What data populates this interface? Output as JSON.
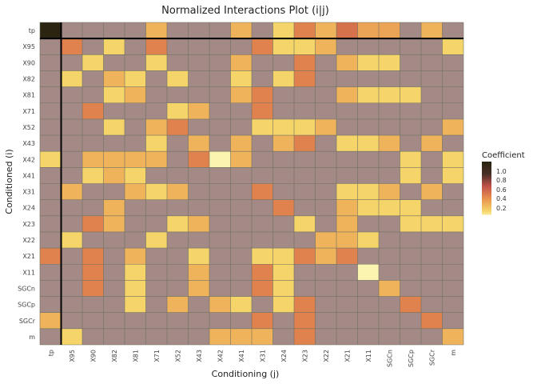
{
  "chart_data": {
    "type": "heatmap",
    "title": "Normalized Interactions Plot (i|j)",
    "xlabel": "Conditioning (j)",
    "ylabel": "Conditioned (i)",
    "x_categories": [
      "tp",
      "X95",
      "X90",
      "X82",
      "X81",
      "X71",
      "X52",
      "X43",
      "X42",
      "X41",
      "X31",
      "X24",
      "X23",
      "X22",
      "X21",
      "X11",
      "SGCn",
      "SGCp",
      "SGCr",
      "m"
    ],
    "y_categories": [
      "tp",
      "X95",
      "X90",
      "X82",
      "X81",
      "X71",
      "X52",
      "X43",
      "X42",
      "X41",
      "X31",
      "X24",
      "X23",
      "X22",
      "X21",
      "X11",
      "SGCn",
      "SGCp",
      "SGCr",
      "m"
    ],
    "values": [
      [
        1.0,
        0,
        0,
        0,
        0,
        0.3,
        0,
        0,
        0,
        0.3,
        0,
        0.2,
        0.45,
        0.3,
        0.5,
        0.35,
        0.35,
        0,
        0.3,
        0
      ],
      [
        0,
        0.45,
        0,
        0.2,
        0,
        0.45,
        0,
        0,
        0,
        0,
        0.45,
        0.2,
        0.2,
        0.3,
        0,
        0,
        0,
        0,
        0,
        0.2
      ],
      [
        0,
        0,
        0.2,
        0,
        0,
        0.2,
        0,
        0,
        0,
        0.3,
        0,
        0,
        0.45,
        0,
        0.3,
        0.2,
        0.2,
        0,
        0,
        0
      ],
      [
        0,
        0.2,
        0,
        0.3,
        0.2,
        0,
        0.2,
        0,
        0,
        0.2,
        0,
        0.2,
        0.45,
        0,
        0,
        0,
        0,
        0,
        0,
        0
      ],
      [
        0,
        0,
        0,
        0.2,
        0.3,
        0,
        0,
        0,
        0,
        0.3,
        0.45,
        0,
        0,
        0,
        0.3,
        0.2,
        0.2,
        0.2,
        0,
        0
      ],
      [
        0,
        0,
        0.45,
        0,
        0,
        0,
        0.2,
        0.3,
        0,
        0,
        0.45,
        0,
        0,
        0,
        0,
        0,
        0,
        0,
        0,
        0
      ],
      [
        0,
        0,
        0,
        0.2,
        0,
        0.3,
        0.45,
        0,
        0,
        0,
        0.2,
        0.2,
        0.2,
        0.3,
        0,
        0,
        0,
        0,
        0,
        0.3
      ],
      [
        0,
        0,
        0,
        0,
        0,
        0.2,
        0,
        0.3,
        0,
        0.3,
        0,
        0.3,
        0.45,
        0,
        0.2,
        0.2,
        0.3,
        0,
        0.3,
        0
      ],
      [
        0.2,
        0,
        0.3,
        0.3,
        0.3,
        0.3,
        0,
        0.45,
        0.1,
        0.3,
        0,
        0,
        0,
        0,
        0,
        0,
        0,
        0.2,
        0,
        0.2
      ],
      [
        0,
        0,
        0.2,
        0.3,
        0.2,
        0,
        0,
        0,
        0,
        0,
        0,
        0,
        0,
        0,
        0,
        0,
        0,
        0.2,
        0,
        0.2
      ],
      [
        0,
        0.3,
        0,
        0,
        0.3,
        0.2,
        0.3,
        0,
        0,
        0,
        0.45,
        0,
        0,
        0,
        0.2,
        0.2,
        0.3,
        0,
        0.3,
        0
      ],
      [
        0,
        0,
        0,
        0.3,
        0,
        0,
        0,
        0,
        0,
        0,
        0,
        0.45,
        0,
        0,
        0.3,
        0.2,
        0.2,
        0.2,
        0,
        0
      ],
      [
        0,
        0,
        0.45,
        0.3,
        0,
        0,
        0.2,
        0.3,
        0,
        0,
        0,
        0,
        0.2,
        0,
        0.3,
        0,
        0,
        0.2,
        0.2,
        0.2
      ],
      [
        0,
        0.2,
        0,
        0,
        0,
        0.2,
        0,
        0,
        0,
        0,
        0,
        0,
        0,
        0.3,
        0.3,
        0.2,
        0,
        0,
        0,
        0
      ],
      [
        0.45,
        0,
        0.45,
        0,
        0.3,
        0,
        0,
        0.2,
        0,
        0,
        0.2,
        0.2,
        0.45,
        0.3,
        0.45,
        0,
        0,
        0,
        0,
        0
      ],
      [
        0,
        0,
        0.45,
        0,
        0.2,
        0,
        0,
        0.3,
        0,
        0,
        0.45,
        0.2,
        0,
        0,
        0,
        0.1,
        0,
        0,
        0,
        0
      ],
      [
        0,
        0,
        0.45,
        0,
        0.2,
        0,
        0,
        0.3,
        0,
        0,
        0.45,
        0.2,
        0,
        0,
        0,
        0,
        0.3,
        0,
        0,
        0
      ],
      [
        0,
        0,
        0,
        0,
        0.2,
        0,
        0.3,
        0,
        0.3,
        0.2,
        0,
        0.2,
        0.45,
        0,
        0,
        0,
        0,
        0.45,
        0,
        0
      ],
      [
        0.3,
        0,
        0,
        0,
        0,
        0,
        0,
        0,
        0,
        0,
        0.45,
        0,
        0.45,
        0,
        0,
        0,
        0,
        0,
        0.45,
        0
      ],
      [
        0,
        0.2,
        0,
        0,
        0,
        0,
        0,
        0,
        0.3,
        0.3,
        0.3,
        0,
        0.45,
        0,
        0,
        0,
        0,
        0,
        0,
        0.3
      ]
    ],
    "default_color": "#a38a86",
    "color_scale": {
      "title": "Coefficient",
      "ticks": [
        1.0,
        0.8,
        0.6,
        0.4,
        0.2
      ],
      "tick_labels": [
        "1.0",
        "0.8",
        "0.6",
        "0.4",
        "0.2"
      ],
      "colors": [
        "#2a2410",
        "#4a3028",
        "#c2524a",
        "#e8924e",
        "#f5d46a",
        "#fbf3b0"
      ]
    },
    "grid": true,
    "legend_position": "right"
  }
}
